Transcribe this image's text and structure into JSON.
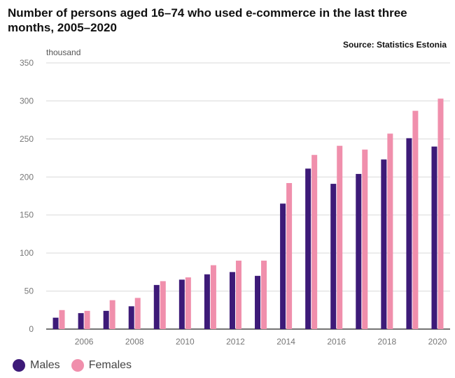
{
  "chart_data": {
    "type": "bar",
    "title": "Number of persons aged 16–74 who used e-commerce in the last three months, 2005–2020",
    "source": "Source: Statistics Estonia",
    "ylabel": "thousand",
    "xlabel": "",
    "ylim": [
      0,
      350
    ],
    "yticks": [
      0,
      50,
      100,
      150,
      200,
      250,
      300,
      350
    ],
    "grid": true,
    "legend_position": "bottom-left",
    "categories": [
      "2005",
      "2006",
      "2007",
      "2008",
      "2009",
      "2010",
      "2011",
      "2012",
      "2013",
      "2014",
      "2015",
      "2016",
      "2017",
      "2018",
      "2019",
      "2020"
    ],
    "xtick_labels": [
      "2006",
      "2008",
      "2010",
      "2012",
      "2014",
      "2016",
      "2018",
      "2020"
    ],
    "series": [
      {
        "name": "Males",
        "color": "#3d1a78",
        "values": [
          15,
          21,
          24,
          30,
          58,
          65,
          72,
          75,
          70,
          165,
          211,
          191,
          204,
          223,
          251,
          240
        ]
      },
      {
        "name": "Females",
        "color": "#f08fac",
        "values": [
          25,
          24,
          38,
          41,
          63,
          68,
          84,
          90,
          90,
          192,
          229,
          241,
          236,
          257,
          287,
          303
        ]
      }
    ]
  }
}
